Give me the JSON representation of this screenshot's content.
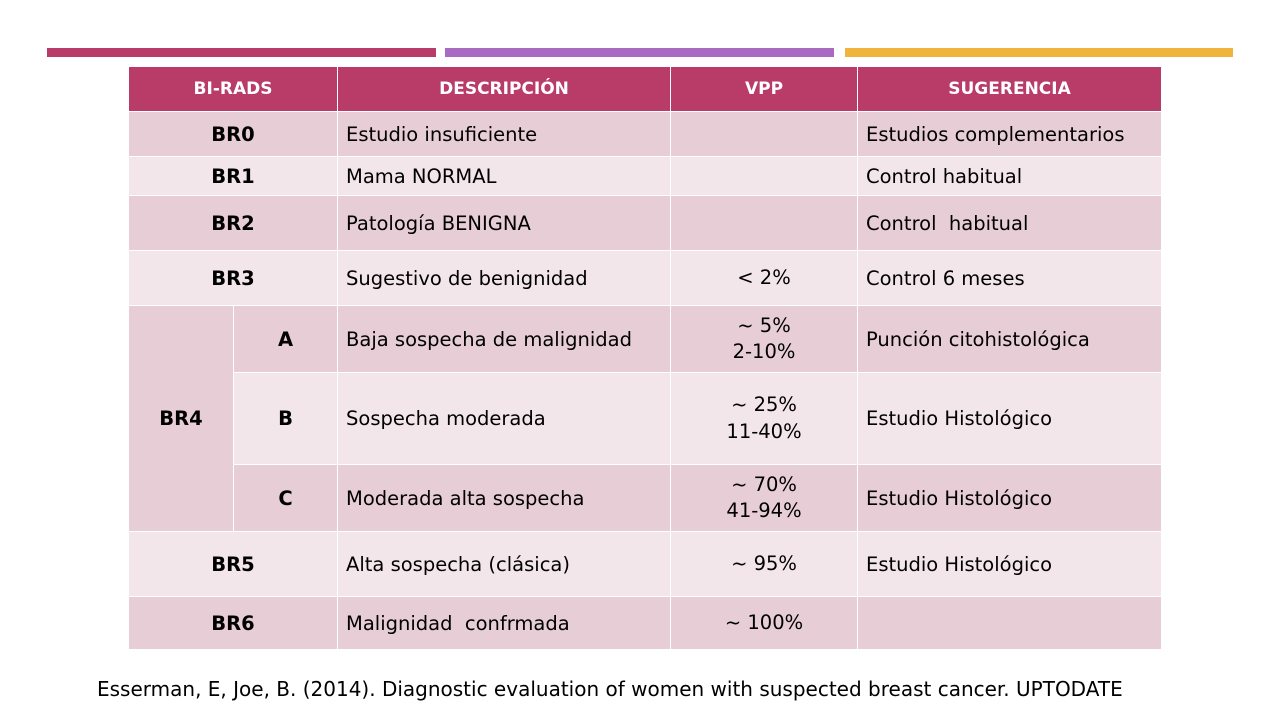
{
  "colors": {
    "header": "#b83b68",
    "bar_1": "#b83b68",
    "bar_2": "#a96bc2",
    "bar_3": "#f0b43c",
    "row_dark": "#e7cdd5",
    "row_light": "#f3e6ea"
  },
  "table": {
    "headers": [
      "BI-RADS",
      "DESCRIPCIÓN",
      "VPP",
      "SUGERENCIA"
    ],
    "rows": [
      {
        "code": "BR0",
        "desc": "Estudio insuficiente",
        "vpp1": "",
        "vpp2": "",
        "sug": "Estudios complementarios"
      },
      {
        "code": "BR1",
        "desc": "Mama NORMAL",
        "vpp1": "",
        "vpp2": "",
        "sug": "Control habitual"
      },
      {
        "code": "BR2",
        "desc": "Patología BENIGNA",
        "vpp1": "",
        "vpp2": "",
        "sug": "Control  habitual"
      },
      {
        "code": "BR3",
        "desc": "Sugestivo de benignidad",
        "vpp1": "< 2%",
        "vpp2": "",
        "sug": "Control 6 meses"
      },
      {
        "code": "BR4",
        "sub": "A",
        "desc": "Baja sospecha de malignidad",
        "vpp1": "~ 5%",
        "vpp2": "2-10%",
        "sug": "Punción citohistológica"
      },
      {
        "sub": "B",
        "desc": "Sospecha moderada",
        "vpp1": "~ 25%",
        "vpp2": "11-40%",
        "sug": "Estudio Histológico"
      },
      {
        "sub": "C",
        "desc": "Moderada alta sospecha",
        "vpp1": "~ 70%",
        "vpp2": "41-94%",
        "sug": "Estudio Histológico"
      },
      {
        "code": "BR5",
        "desc": "Alta sospecha (clásica)",
        "vpp1": "~ 95%",
        "vpp2": "",
        "sug": "Estudio Histológico"
      },
      {
        "code": "BR6",
        "desc": "Malignidad  confrmada",
        "vpp1": "~ 100%",
        "vpp2": "",
        "sug": ""
      }
    ]
  },
  "citation": "Esserman, E, Joe, B. (2014). Diagnostic evaluation of women with suspected breast cancer. UPTODATE"
}
